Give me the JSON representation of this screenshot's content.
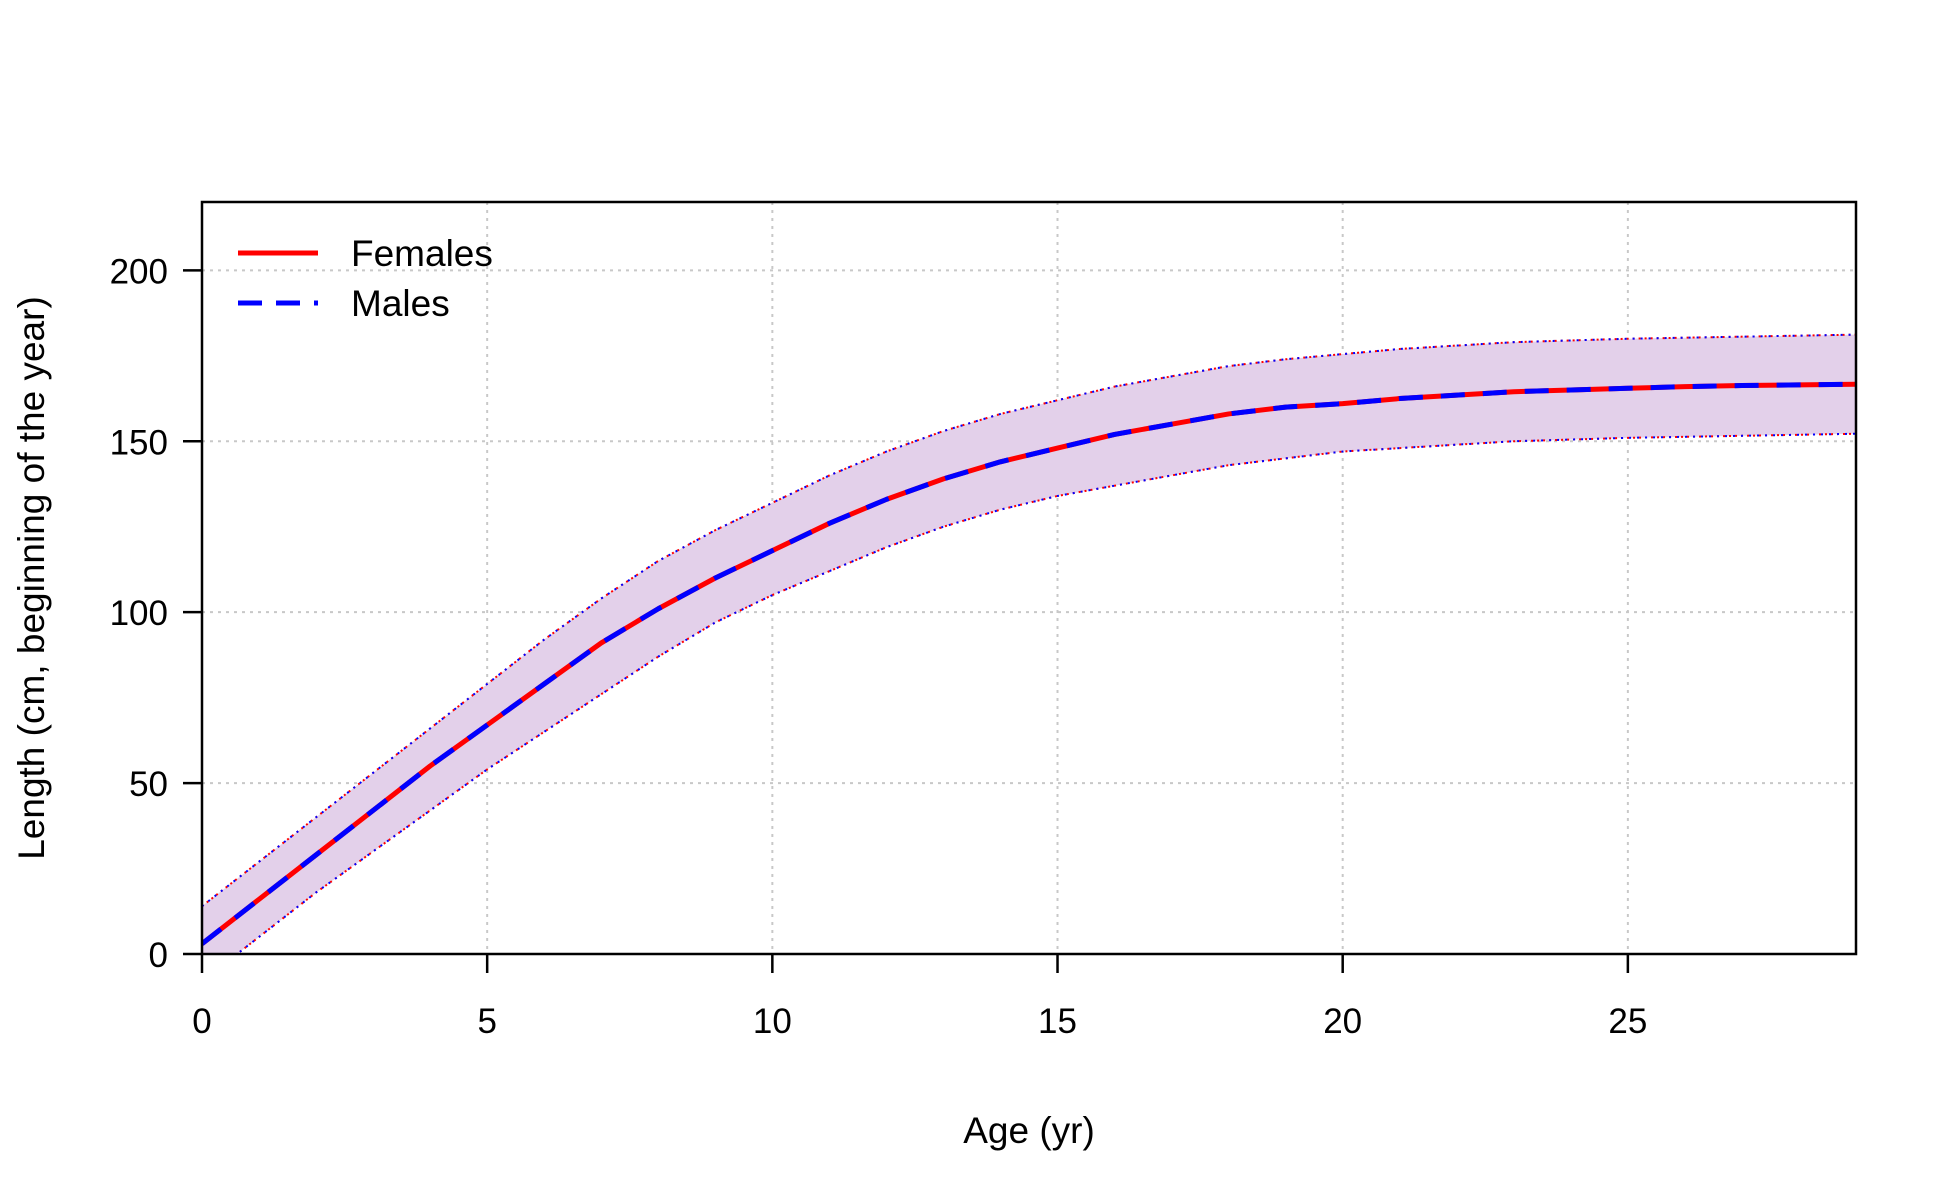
{
  "chart_data": {
    "type": "line",
    "title": "",
    "xlabel": "Age (yr)",
    "ylabel": "Length (cm, beginning of the year)",
    "xlim": [
      0,
      29
    ],
    "ylim": [
      0,
      220
    ],
    "xticks": [
      0,
      5,
      10,
      15,
      20,
      25
    ],
    "yticks": [
      0,
      50,
      100,
      150,
      200
    ],
    "grid": true,
    "legend_position": "top-left",
    "band_color": "#e3d0ea",
    "series": [
      {
        "name": "Females",
        "color": "#ff0000",
        "style": "solid",
        "x": [
          0,
          1,
          2,
          3,
          4,
          5,
          6,
          7,
          8,
          9,
          10,
          11,
          12,
          13,
          14,
          15,
          16,
          17,
          18,
          19,
          20,
          21,
          22,
          23,
          24,
          25,
          26,
          27,
          28,
          29
        ],
        "y": [
          3,
          16,
          29,
          42,
          55,
          67,
          79,
          91,
          101,
          110,
          118,
          126,
          133,
          139,
          144,
          148,
          152,
          155,
          158,
          160,
          161,
          162.5,
          163.5,
          164.5,
          165,
          165.5,
          166,
          166.3,
          166.5,
          166.7
        ],
        "lower": [
          -8,
          5,
          18,
          30,
          42,
          54,
          65,
          76,
          87,
          97,
          105,
          112,
          119,
          125,
          130,
          134,
          137,
          140,
          143,
          145,
          147,
          148,
          149,
          150,
          150.5,
          151,
          151.3,
          151.6,
          151.9,
          152.2
        ],
        "upper": [
          14,
          27,
          40,
          53,
          66,
          79,
          92,
          104,
          115,
          124,
          132,
          140,
          147,
          153,
          158,
          162,
          166,
          169,
          172,
          174,
          175.5,
          177,
          178,
          179,
          179.5,
          180,
          180.3,
          180.6,
          180.9,
          181.2
        ]
      },
      {
        "name": "Males",
        "color": "#0000ff",
        "style": "dashed",
        "x": [
          0,
          1,
          2,
          3,
          4,
          5,
          6,
          7,
          8,
          9,
          10,
          11,
          12,
          13,
          14,
          15,
          16,
          17,
          18,
          19,
          20,
          21,
          22,
          23,
          24,
          25,
          26,
          27,
          28,
          29
        ],
        "y": [
          3,
          16,
          29,
          42,
          55,
          67,
          79,
          91,
          101,
          110,
          118,
          126,
          133,
          139,
          144,
          148,
          152,
          155,
          158,
          160,
          161,
          162.5,
          163.5,
          164.5,
          165,
          165.5,
          166,
          166.3,
          166.5,
          166.7
        ],
        "lower": [
          -8,
          5,
          18,
          30,
          42,
          54,
          65,
          76,
          87,
          97,
          105,
          112,
          119,
          125,
          130,
          134,
          137,
          140,
          143,
          145,
          147,
          148,
          149,
          150,
          150.5,
          151,
          151.3,
          151.6,
          151.9,
          152.2
        ],
        "upper": [
          14,
          27,
          40,
          53,
          66,
          79,
          92,
          104,
          115,
          124,
          132,
          140,
          147,
          153,
          158,
          162,
          166,
          169,
          172,
          174,
          175.5,
          177,
          178,
          179,
          179.5,
          180,
          180.3,
          180.6,
          180.9,
          181.2
        ]
      }
    ]
  }
}
